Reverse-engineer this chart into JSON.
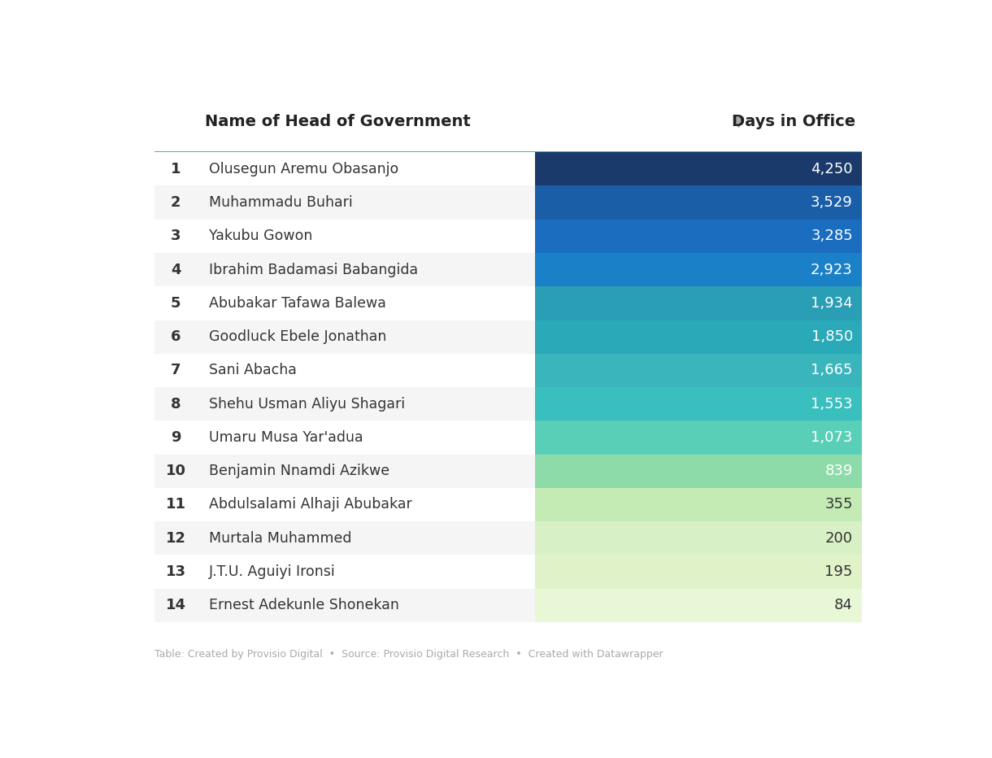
{
  "title_left": "Name of Head of Government",
  "title_right": "Days in Office",
  "rows": [
    {
      "rank": "1",
      "name": "Olusegun Aremu Obasanjo",
      "days": 4250,
      "days_str": "4,250"
    },
    {
      "rank": "2",
      "name": "Muhammadu Buhari",
      "days": 3529,
      "days_str": "3,529"
    },
    {
      "rank": "3",
      "name": "Yakubu Gowon",
      "days": 3285,
      "days_str": "3,285"
    },
    {
      "rank": "4",
      "name": "Ibrahim Badamasi Babangida",
      "days": 2923,
      "days_str": "2,923"
    },
    {
      "rank": "5",
      "name": "Abubakar Tafawa Balewa",
      "days": 1934,
      "days_str": "1,934"
    },
    {
      "rank": "6",
      "name": "Goodluck Ebele Jonathan",
      "days": 1850,
      "days_str": "1,850"
    },
    {
      "rank": "7",
      "name": "Sani Abacha",
      "days": 1665,
      "days_str": "1,665"
    },
    {
      "rank": "8",
      "name": "Shehu Usman Aliyu Shagari",
      "days": 1553,
      "days_str": "1,553"
    },
    {
      "rank": "9",
      "name": "Umaru Musa Yar'adua",
      "days": 1073,
      "days_str": "1,073"
    },
    {
      "rank": "10",
      "name": "Benjamin Nnamdi Azikwe",
      "days": 839,
      "days_str": "839"
    },
    {
      "rank": "11",
      "name": "Abdulsalami Alhaji Abubakar",
      "days": 355,
      "days_str": "355"
    },
    {
      "rank": "12",
      "name": "Murtala Muhammed",
      "days": 200,
      "days_str": "200"
    },
    {
      "rank": "13",
      "name": "J.T.U. Aguiyi Ironsi",
      "days": 195,
      "days_str": "195"
    },
    {
      "rank": "14",
      "name": "Ernest Adekunle Shonekan",
      "days": 84,
      "days_str": "84"
    }
  ],
  "row_colors_left": [
    "#ffffff",
    "#f5f5f5",
    "#ffffff",
    "#f5f5f5",
    "#ffffff",
    "#f5f5f5",
    "#ffffff",
    "#f5f5f5",
    "#ffffff",
    "#f5f5f5",
    "#ffffff",
    "#f5f5f5",
    "#ffffff",
    "#f5f5f5"
  ],
  "bar_colors": [
    "#1a3a6b",
    "#1a5ea8",
    "#1a6dbf",
    "#1a80c8",
    "#2a9eb5",
    "#2aaab8",
    "#3ab5bc",
    "#3abfbf",
    "#5acfb8",
    "#8ddba8",
    "#c5ebb5",
    "#d8f0c5",
    "#dff2c8",
    "#e8f7d5"
  ],
  "header_line_color": "#2abfbf",
  "background_color": "#ffffff",
  "footer_text": "Table: Created by Provisio Digital  •  Source: Provisio Digital Research  •  Created with Datawrapper",
  "footer_color": "#aaaaaa",
  "rank_color": "#333333",
  "name_color": "#333333",
  "value_color_light": "#ffffff",
  "value_color_dark": "#333333",
  "white_text_threshold": 839
}
